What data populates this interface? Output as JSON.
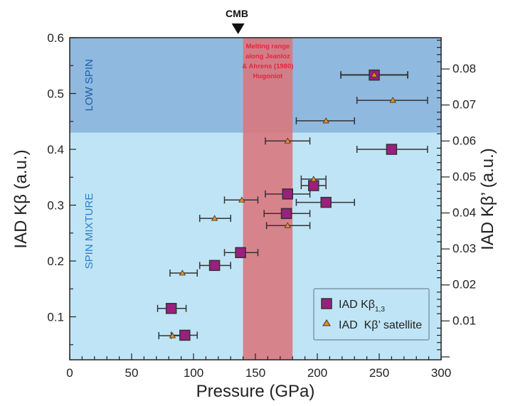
{
  "chart_data": {
    "type": "scatter",
    "xlabel": "Pressure (GPa)",
    "ylabel": "IAD Kβ (a.u.)",
    "ylabel_right": "IAD Kβ’ (a.u.)",
    "xlim": [
      0,
      300
    ],
    "ylim": [
      0.023,
      0.6
    ],
    "ylim_right": [
      -0.0008,
      0.0887
    ],
    "xticks": [
      "0",
      "50",
      "100",
      "150",
      "200",
      "250",
      "300"
    ],
    "yticks": [
      "0.1",
      "0.2",
      "0.3",
      "0.4",
      "0.5",
      "0.6"
    ],
    "yticks_right": [
      "0.01",
      "0.02",
      "0.03",
      "0.04",
      "0.05",
      "0.06",
      "0.07",
      "0.08"
    ],
    "legend_position": "bottom-right",
    "regions": {
      "low_spin": {
        "label": "LOW SPIN",
        "from": 0.43,
        "to": 0.6,
        "color": "#8fb9de"
      },
      "spin_mixture": {
        "label": "SPIN MIXTURE",
        "from": 0.023,
        "to": 0.43,
        "color": "#bfe4f5"
      },
      "melting": {
        "label_lines": [
          "Melting range",
          "along Jeanloz",
          "& Ahrens (1980)",
          "Hugoniot"
        ],
        "from": 140,
        "to": 180,
        "color": "#d9787f"
      }
    },
    "marker": {
      "label": "CMB",
      "x": 136
    },
    "series": [
      {
        "name": "IAD Kβ",
        "sub": "1,3",
        "axis": "left",
        "marker": "square",
        "color": "#9b1f7f",
        "points": [
          {
            "x": 246,
            "y": 0.533,
            "xerr": [
              219,
              273
            ]
          },
          {
            "x": 260,
            "y": 0.4,
            "xerr": [
              232,
              289
            ]
          },
          {
            "x": 176,
            "y": 0.32,
            "xerr": [
              158,
              194
            ]
          },
          {
            "x": 197,
            "y": 0.335,
            "xerr": [
              187,
              207
            ]
          },
          {
            "x": 207,
            "y": 0.305,
            "xerr": [
              183,
              230
            ]
          },
          {
            "x": 175,
            "y": 0.285,
            "xerr": [
              157,
              194
            ]
          },
          {
            "x": 138,
            "y": 0.215,
            "xerr": [
              125,
              152
            ]
          },
          {
            "x": 117,
            "y": 0.192,
            "xerr": [
              105,
              130
            ]
          },
          {
            "x": 82,
            "y": 0.115,
            "xerr": [
              71,
              94
            ]
          },
          {
            "x": 93,
            "y": 0.067,
            "xerr": [
              82,
              103
            ]
          }
        ]
      },
      {
        "name": "IAD  Kβ’ satellite",
        "axis": "right",
        "marker": "triangle",
        "color": "#f08a1c",
        "points": [
          {
            "x": 246,
            "y": 0.0784,
            "xerr": [
              219,
              273
            ]
          },
          {
            "x": 261,
            "y": 0.0713,
            "xerr": [
              232,
              289
            ]
          },
          {
            "x": 207,
            "y": 0.0656,
            "xerr": [
              183,
              230
            ]
          },
          {
            "x": 176,
            "y": 0.06,
            "xerr": [
              158,
              194
            ]
          },
          {
            "x": 197,
            "y": 0.0494,
            "xerr": [
              187,
              207
            ]
          },
          {
            "x": 139,
            "y": 0.0436,
            "xerr": [
              125,
              152
            ]
          },
          {
            "x": 117,
            "y": 0.0385,
            "xerr": [
              105,
              130
            ]
          },
          {
            "x": 176,
            "y": 0.0365,
            "xerr": [
              159,
              194
            ]
          },
          {
            "x": 91,
            "y": 0.0233,
            "xerr": [
              81,
              103
            ]
          },
          {
            "x": 83,
            "y": 0.0059,
            "xerr": [
              72,
              94
            ]
          }
        ]
      }
    ]
  }
}
